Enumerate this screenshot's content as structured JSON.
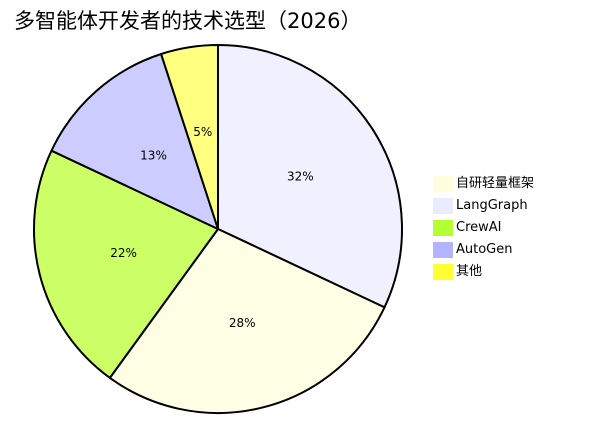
{
  "title": "多智能体开发者的技术选型（2026）",
  "chart_data": {
    "type": "pie",
    "title": "多智能体开发者的技术选型（2026）",
    "categories": [
      "LangGraph",
      "自研轻量框架",
      "CrewAI",
      "AutoGen",
      "其他"
    ],
    "values": [
      32,
      28,
      22,
      13,
      5
    ],
    "labels": [
      "32%",
      "28%",
      "22%",
      "13%",
      "5%"
    ],
    "slice_colors": [
      "#f0f0ff",
      "#ffffe6",
      "#ccff66",
      "#ccccff",
      "#ffff80"
    ],
    "legend": [
      {
        "label": "自研轻量框架",
        "color": "#ffffe0"
      },
      {
        "label": "LangGraph",
        "color": "#ebebff"
      },
      {
        "label": "CrewAI",
        "color": "#b3ff33"
      },
      {
        "label": "AutoGen",
        "color": "#b3b3ff"
      },
      {
        "label": "其他",
        "color": "#ffff33"
      }
    ],
    "legend_position": "right",
    "start": "top",
    "direction": "clockwise"
  }
}
